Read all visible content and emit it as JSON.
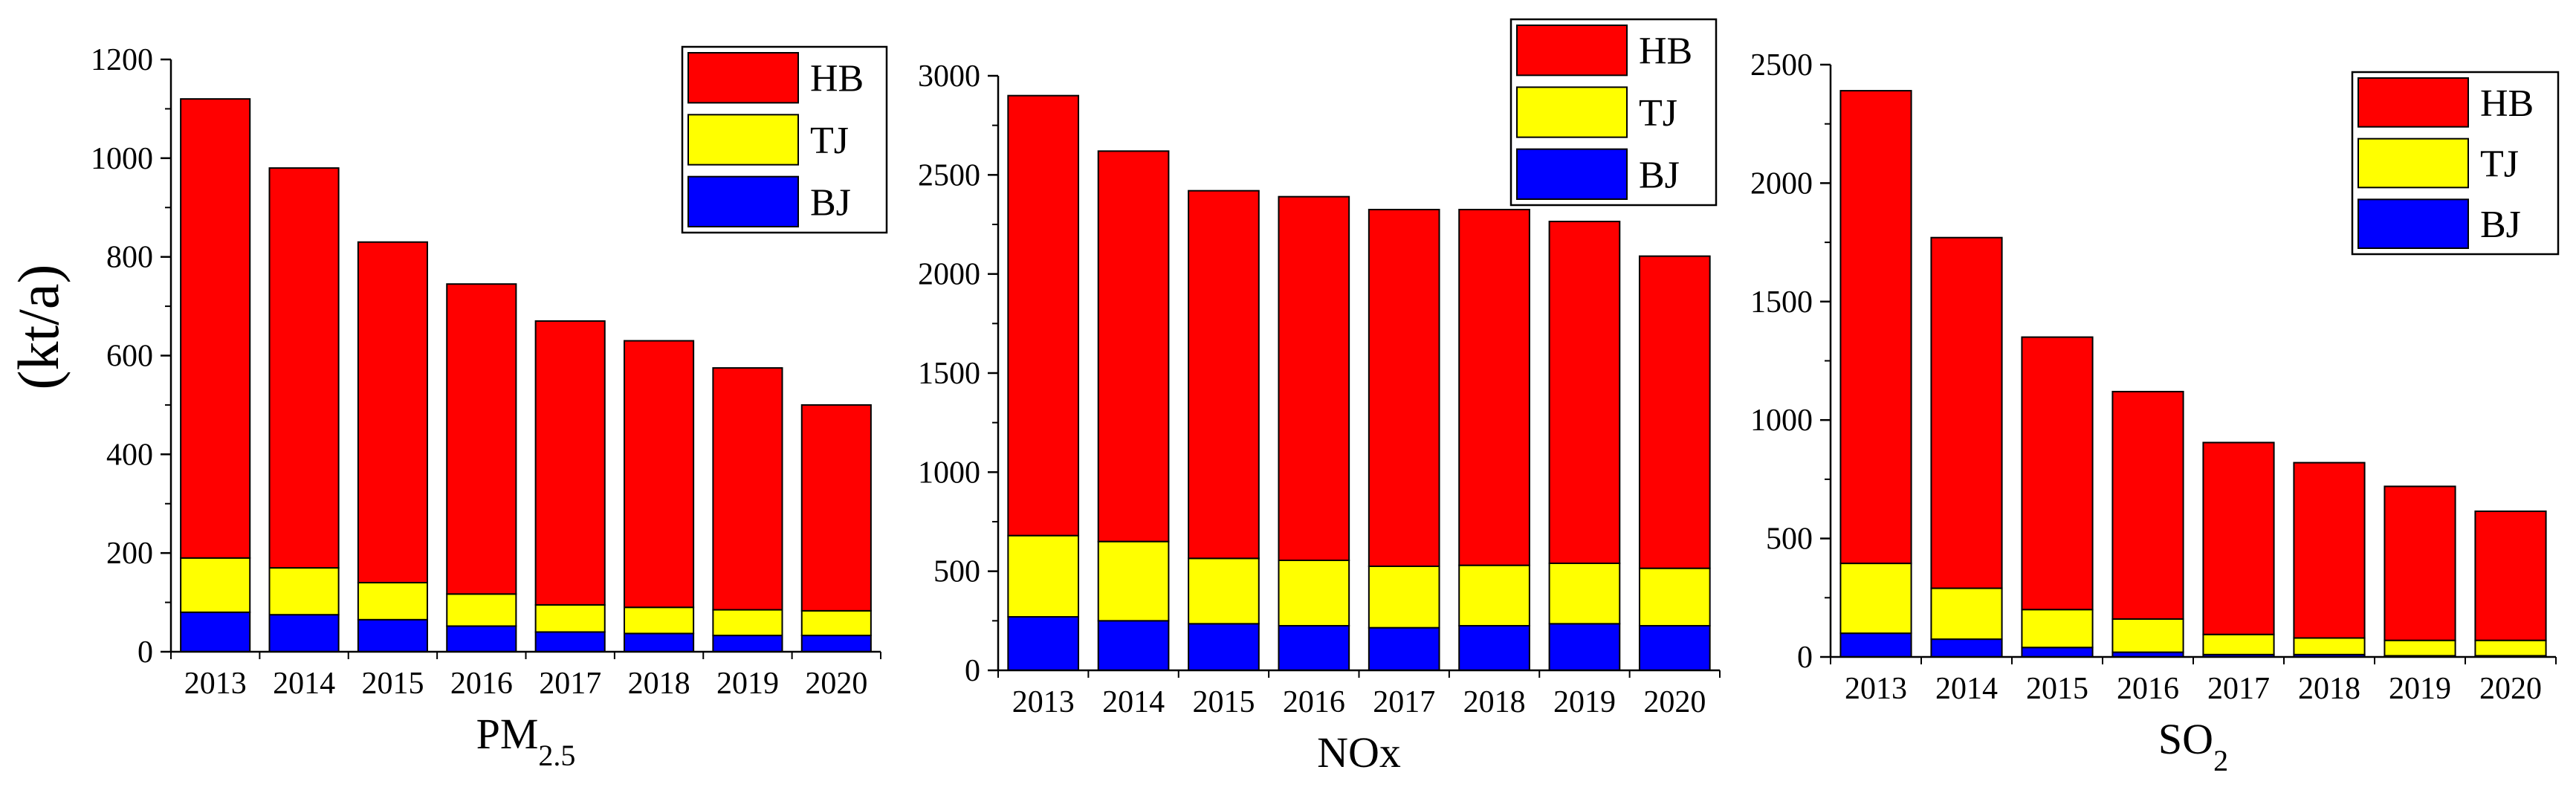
{
  "figure": {
    "ylabel": "(kt/a)"
  },
  "chart_data": [
    {
      "type": "bar",
      "stacked": true,
      "xlabel": "PM",
      "xlabel_subscript": "2.5",
      "categories": [
        "2013",
        "2014",
        "2015",
        "2016",
        "2017",
        "2018",
        "2019",
        "2020"
      ],
      "ylim": [
        0,
        1200
      ],
      "yticks": [
        "0",
        "200",
        "400",
        "600",
        "800",
        "1000",
        "1200"
      ],
      "legend_position": "top-right",
      "series": [
        {
          "name": "BJ",
          "color": "#0000ff",
          "values": [
            80,
            75,
            65,
            52,
            40,
            37,
            33,
            33
          ]
        },
        {
          "name": "TJ",
          "color": "#ffff00",
          "values": [
            110,
            95,
            75,
            65,
            55,
            53,
            52,
            50
          ]
        },
        {
          "name": "HB",
          "color": "#ff0000",
          "values": [
            930,
            810,
            690,
            628,
            575,
            540,
            490,
            417
          ]
        }
      ]
    },
    {
      "type": "bar",
      "stacked": true,
      "xlabel": "NOx",
      "xlabel_subscript": "",
      "categories": [
        "2013",
        "2014",
        "2015",
        "2016",
        "2017",
        "2018",
        "2019",
        "2020"
      ],
      "ylim": [
        0,
        3000
      ],
      "yticks": [
        "0",
        "500",
        "1000",
        "1500",
        "2000",
        "2500",
        "3000"
      ],
      "legend_position": "top-right",
      "series": [
        {
          "name": "BJ",
          "color": "#0000ff",
          "values": [
            270,
            250,
            235,
            225,
            215,
            225,
            235,
            225
          ]
        },
        {
          "name": "TJ",
          "color": "#ffff00",
          "values": [
            410,
            400,
            330,
            330,
            310,
            305,
            305,
            290
          ]
        },
        {
          "name": "HB",
          "color": "#ff0000",
          "values": [
            2220,
            1970,
            1855,
            1835,
            1800,
            1795,
            1725,
            1575
          ]
        }
      ]
    },
    {
      "type": "bar",
      "stacked": true,
      "xlabel": "SO",
      "xlabel_subscript": "2",
      "categories": [
        "2013",
        "2014",
        "2015",
        "2016",
        "2017",
        "2018",
        "2019",
        "2020"
      ],
      "ylim": [
        0,
        2500
      ],
      "yticks": [
        "0",
        "500",
        "1000",
        "1500",
        "2000",
        "2500"
      ],
      "legend_position": "top-right",
      "series": [
        {
          "name": "BJ",
          "color": "#0000ff",
          "values": [
            100,
            75,
            40,
            20,
            10,
            10,
            5,
            5
          ]
        },
        {
          "name": "TJ",
          "color": "#ffff00",
          "values": [
            295,
            215,
            160,
            140,
            85,
            70,
            65,
            65
          ]
        },
        {
          "name": "HB",
          "color": "#ff0000",
          "values": [
            1995,
            1480,
            1150,
            960,
            810,
            740,
            650,
            545
          ]
        }
      ]
    }
  ]
}
